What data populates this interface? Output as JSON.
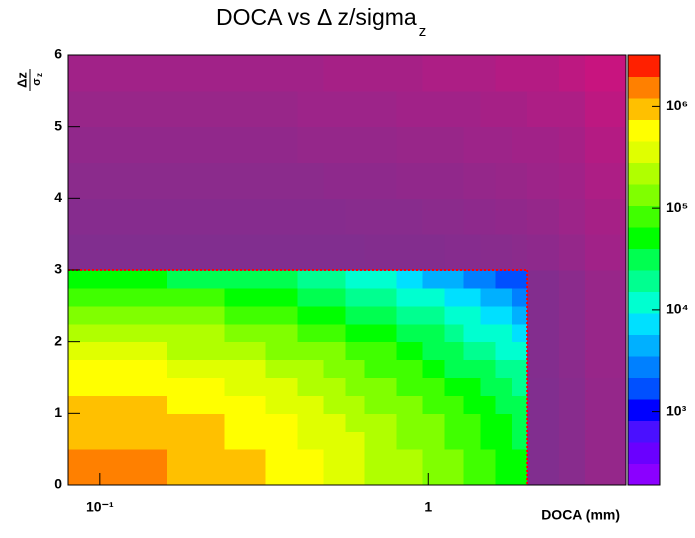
{
  "chart_data": {
    "type": "heatmap",
    "title": "DOCA vs Δ z/sigma",
    "title_subscript": "z",
    "x_label": "DOCA (mm)",
    "y_label": {
      "numerator": "Δz",
      "denominator": "σ",
      "denominator_subscript": "z"
    },
    "x_log": true,
    "xlim": [
      0.08,
      4
    ],
    "xticks": [
      {
        "value": 0.1,
        "label": "10⁻¹"
      },
      1
    ],
    "ylim": [
      0,
      6
    ],
    "yticks": [
      0,
      1,
      2,
      3,
      4,
      5,
      6
    ],
    "z_log": true,
    "zlim": [
      190,
      3200000
    ],
    "zticks": [
      {
        "value": 1000,
        "label": "10³"
      },
      {
        "value": 10000,
        "label": "10⁴"
      },
      {
        "value": 100000,
        "label": "10⁵"
      },
      {
        "value": 1000000,
        "label": "10⁶"
      }
    ],
    "palette": [
      "#8b00ff",
      "#6a00ff",
      "#4a10ff",
      "#0000ff",
      "#0050ff",
      "#0080ff",
      "#00b0ff",
      "#00e0ff",
      "#00ffd0",
      "#00ff90",
      "#00ff50",
      "#00ff00",
      "#40ff00",
      "#80ff00",
      "#b0ff00",
      "#e0ff00",
      "#ffff00",
      "#ffc000",
      "#ff8000",
      "#ff2000"
    ],
    "low_colors": [
      "#c8147f",
      "#7f2f8f"
    ],
    "cut": {
      "x": 2,
      "y": 3,
      "color": "#ff0000"
    },
    "xbins": [
      0.08,
      0.16,
      0.24,
      0.32,
      0.4,
      0.48,
      0.56,
      0.64,
      0.8,
      0.96,
      1.12,
      1.28,
      1.44,
      1.6,
      1.8,
      2.0,
      2.5,
      3.0,
      4.0
    ],
    "ybins": [
      0,
      0.25,
      0.5,
      0.75,
      1,
      1.25,
      1.5,
      1.75,
      2,
      2.25,
      2.5,
      2.75,
      3,
      3.5,
      4,
      4.5,
      5,
      5.5,
      6
    ],
    "z": [
      [
        1300000,
        1100000,
        820000,
        650000,
        520000,
        420000,
        350000,
        270000,
        190000,
        150000,
        110000,
        89000,
        71000,
        56000,
        44000,
        180,
        150,
        110
      ],
      [
        1300000,
        1000000,
        790000,
        620000,
        490000,
        400000,
        330000,
        260000,
        185000,
        140000,
        110000,
        84000,
        68000,
        54000,
        42000,
        180,
        150,
        110
      ],
      [
        1200000,
        920000,
        710000,
        560000,
        450000,
        360000,
        300000,
        230000,
        170000,
        130000,
        97000,
        76000,
        62000,
        49000,
        38000,
        180,
        150,
        110
      ],
      [
        1000000,
        790000,
        610000,
        480000,
        390000,
        310000,
        260000,
        200000,
        140000,
        110000,
        83000,
        66000,
        53000,
        42000,
        33000,
        180,
        150,
        110
      ],
      [
        820000,
        650000,
        500000,
        400000,
        320000,
        260000,
        210000,
        160000,
        120000,
        89000,
        68000,
        54000,
        44000,
        34000,
        27000,
        180,
        150,
        110
      ],
      [
        640000,
        510000,
        390000,
        310000,
        250000,
        200000,
        165000,
        130000,
        92000,
        69000,
        53000,
        42000,
        34000,
        27000,
        21000,
        180,
        150,
        110
      ],
      [
        480000,
        380000,
        290000,
        230000,
        180000,
        150000,
        120000,
        95000,
        68000,
        52000,
        40000,
        31000,
        25000,
        20000,
        16000,
        170,
        140,
        100
      ],
      [
        340000,
        270000,
        210000,
        160000,
        130000,
        110000,
        87000,
        67000,
        49000,
        37000,
        28000,
        22000,
        18000,
        14000,
        11000,
        170,
        140,
        100
      ],
      [
        230000,
        180000,
        140000,
        110000,
        87000,
        71000,
        58000,
        45000,
        33000,
        25000,
        19000,
        15000,
        12000,
        9400,
        7500,
        170,
        140,
        100
      ],
      [
        145000,
        115000,
        89000,
        70000,
        56000,
        45000,
        38000,
        29000,
        21000,
        16000,
        12000,
        9600,
        7700,
        6100,
        4800,
        170,
        140,
        100
      ],
      [
        88000,
        70000,
        54000,
        43000,
        34000,
        28000,
        23000,
        18000,
        13000,
        9600,
        7300,
        5800,
        4700,
        3700,
        2900,
        170,
        140,
        100
      ],
      [
        51000,
        40000,
        31000,
        25000,
        20000,
        16000,
        13000,
        10000,
        7400,
        5500,
        4200,
        3400,
        2700,
        2100,
        1700,
        170,
        140,
        100
      ],
      [
        180,
        180,
        180,
        180,
        180,
        180,
        180,
        170,
        170,
        170,
        160,
        160,
        150,
        150,
        140,
        130,
        110,
        80
      ],
      [
        160,
        160,
        160,
        160,
        160,
        160,
        150,
        150,
        150,
        140,
        140,
        130,
        130,
        120,
        120,
        110,
        90,
        70
      ],
      [
        140,
        140,
        140,
        140,
        140,
        130,
        130,
        130,
        120,
        120,
        120,
        110,
        110,
        100,
        100,
        90,
        80,
        60
      ],
      [
        120,
        120,
        120,
        120,
        110,
        110,
        110,
        110,
        100,
        100,
        100,
        90,
        90,
        90,
        80,
        80,
        70,
        50
      ],
      [
        100,
        100,
        100,
        100,
        90,
        90,
        90,
        90,
        80,
        80,
        80,
        80,
        70,
        70,
        70,
        60,
        60,
        40
      ],
      [
        80,
        80,
        80,
        80,
        80,
        70,
        70,
        70,
        70,
        60,
        60,
        60,
        60,
        50,
        50,
        50,
        40,
        30
      ]
    ]
  }
}
